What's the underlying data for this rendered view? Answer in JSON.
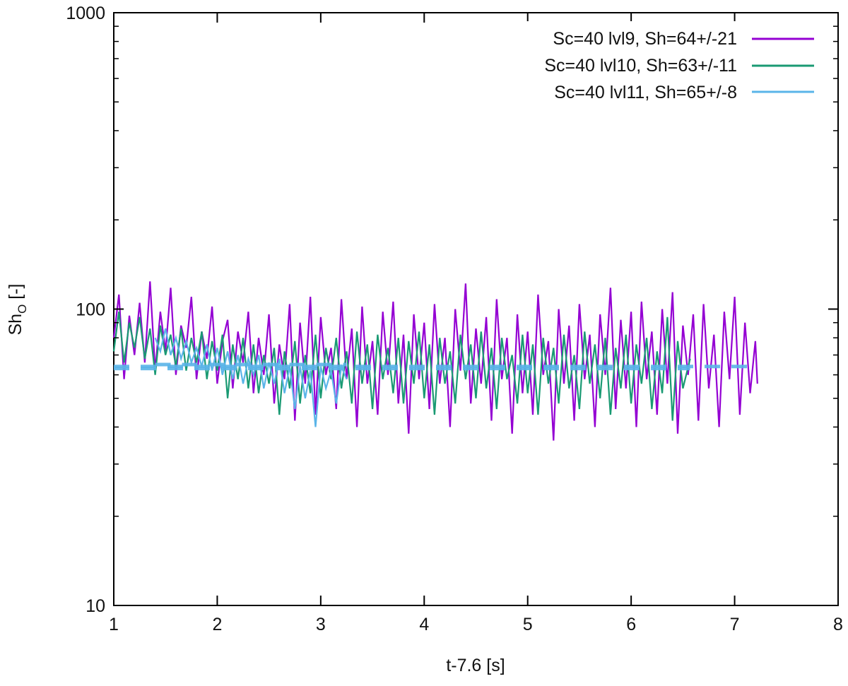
{
  "chart_data": {
    "type": "line",
    "title": "",
    "xlabel": "t-7.6 [s]",
    "ylabel_main": "Sh",
    "ylabel_sub": "O",
    "ylabel_suffix": " [-]",
    "xlim": [
      1,
      8
    ],
    "ylim": [
      10,
      1000
    ],
    "yscale": "log",
    "grid": false,
    "legend_position": "top-right",
    "x_ticks": [
      {
        "value": 1,
        "label": "1"
      },
      {
        "value": 2,
        "label": "2"
      },
      {
        "value": 3,
        "label": "3"
      },
      {
        "value": 4,
        "label": "4"
      },
      {
        "value": 5,
        "label": "5"
      },
      {
        "value": 6,
        "label": "6"
      },
      {
        "value": 7,
        "label": "7"
      },
      {
        "value": 8,
        "label": "8"
      }
    ],
    "y_ticks": [
      {
        "value": 10,
        "label": "10"
      },
      {
        "value": 100,
        "label": "100"
      },
      {
        "value": 1000,
        "label": "1000"
      }
    ],
    "series": [
      {
        "name": "Sc=40 lvl9, Sh=64+/-21",
        "color": "#9400d3",
        "mean": 64,
        "std": 21,
        "x_range": [
          1.0,
          7.22
        ],
        "points": [
          [
            1.0,
            80
          ],
          [
            1.05,
            112
          ],
          [
            1.1,
            58
          ],
          [
            1.15,
            95
          ],
          [
            1.2,
            70
          ],
          [
            1.25,
            105
          ],
          [
            1.3,
            66
          ],
          [
            1.35,
            124
          ],
          [
            1.4,
            62
          ],
          [
            1.45,
            98
          ],
          [
            1.5,
            72
          ],
          [
            1.55,
            118
          ],
          [
            1.6,
            60
          ],
          [
            1.65,
            88
          ],
          [
            1.7,
            74
          ],
          [
            1.75,
            110
          ],
          [
            1.8,
            58
          ],
          [
            1.85,
            84
          ],
          [
            1.9,
            68
          ],
          [
            1.95,
            102
          ],
          [
            2.0,
            56
          ],
          [
            2.05,
            78
          ],
          [
            2.1,
            92
          ],
          [
            2.15,
            54
          ],
          [
            2.2,
            84
          ],
          [
            2.25,
            66
          ],
          [
            2.3,
            98
          ],
          [
            2.35,
            52
          ],
          [
            2.4,
            80
          ],
          [
            2.45,
            60
          ],
          [
            2.5,
            96
          ],
          [
            2.55,
            48
          ],
          [
            2.6,
            76
          ],
          [
            2.65,
            58
          ],
          [
            2.7,
            104
          ],
          [
            2.75,
            42
          ],
          [
            2.8,
            90
          ],
          [
            2.85,
            56
          ],
          [
            2.9,
            110
          ],
          [
            2.95,
            44
          ],
          [
            3.0,
            94
          ],
          [
            3.05,
            60
          ],
          [
            3.1,
            74
          ],
          [
            3.15,
            46
          ],
          [
            3.2,
            108
          ],
          [
            3.25,
            58
          ],
          [
            3.3,
            86
          ],
          [
            3.35,
            40
          ],
          [
            3.4,
            102
          ],
          [
            3.45,
            56
          ],
          [
            3.5,
            78
          ],
          [
            3.55,
            44
          ],
          [
            3.6,
            98
          ],
          [
            3.65,
            60
          ],
          [
            3.7,
            106
          ],
          [
            3.75,
            48
          ],
          [
            3.8,
            82
          ],
          [
            3.85,
            38
          ],
          [
            3.9,
            96
          ],
          [
            3.95,
            58
          ],
          [
            4.0,
            90
          ],
          [
            4.05,
            46
          ],
          [
            4.1,
            104
          ],
          [
            4.15,
            56
          ],
          [
            4.2,
            80
          ],
          [
            4.25,
            40
          ],
          [
            4.3,
            100
          ],
          [
            4.35,
            62
          ],
          [
            4.4,
            122
          ],
          [
            4.45,
            48
          ],
          [
            4.5,
            86
          ],
          [
            4.55,
            56
          ],
          [
            4.6,
            94
          ],
          [
            4.65,
            42
          ],
          [
            4.7,
            108
          ],
          [
            4.75,
            58
          ],
          [
            4.8,
            80
          ],
          [
            4.85,
            38
          ],
          [
            4.9,
            96
          ],
          [
            4.95,
            52
          ],
          [
            5.0,
            84
          ],
          [
            5.05,
            44
          ],
          [
            5.1,
            112
          ],
          [
            5.15,
            60
          ],
          [
            5.2,
            78
          ],
          [
            5.25,
            36
          ],
          [
            5.3,
            100
          ],
          [
            5.35,
            56
          ],
          [
            5.4,
            88
          ],
          [
            5.45,
            42
          ],
          [
            5.5,
            104
          ],
          [
            5.55,
            58
          ],
          [
            5.6,
            82
          ],
          [
            5.65,
            40
          ],
          [
            5.7,
            96
          ],
          [
            5.75,
            60
          ],
          [
            5.8,
            118
          ],
          [
            5.85,
            46
          ],
          [
            5.9,
            92
          ],
          [
            5.95,
            54
          ],
          [
            6.0,
            98
          ],
          [
            6.05,
            40
          ],
          [
            6.1,
            106
          ],
          [
            6.15,
            58
          ],
          [
            6.2,
            84
          ],
          [
            6.25,
            44
          ],
          [
            6.3,
            100
          ],
          [
            6.35,
            56
          ],
          [
            6.4,
            114
          ],
          [
            6.45,
            38
          ],
          [
            6.5,
            88
          ],
          [
            6.55,
            60
          ],
          [
            6.6,
            96
          ],
          [
            6.65,
            42
          ],
          [
            6.7,
            104
          ],
          [
            6.75,
            54
          ],
          [
            6.8,
            82
          ],
          [
            6.85,
            40
          ],
          [
            6.9,
            98
          ],
          [
            6.95,
            58
          ],
          [
            7.0,
            110
          ],
          [
            7.05,
            44
          ],
          [
            7.1,
            90
          ],
          [
            7.15,
            52
          ],
          [
            7.2,
            78
          ],
          [
            7.22,
            56
          ]
        ]
      },
      {
        "name": "Sc=40 lvl10, Sh=63+/-11",
        "color": "#1a9a73",
        "mean": 63,
        "std": 11,
        "x_range": [
          1.0,
          6.57
        ],
        "points": [
          [
            1.0,
            72
          ],
          [
            1.05,
            98
          ],
          [
            1.1,
            66
          ],
          [
            1.15,
            90
          ],
          [
            1.2,
            74
          ],
          [
            1.25,
            94
          ],
          [
            1.3,
            68
          ],
          [
            1.35,
            86
          ],
          [
            1.4,
            60
          ],
          [
            1.45,
            88
          ],
          [
            1.5,
            70
          ],
          [
            1.55,
            82
          ],
          [
            1.6,
            64
          ],
          [
            1.65,
            86
          ],
          [
            1.7,
            62
          ],
          [
            1.75,
            80
          ],
          [
            1.8,
            66
          ],
          [
            1.85,
            84
          ],
          [
            1.9,
            58
          ],
          [
            1.95,
            78
          ],
          [
            2.0,
            62
          ],
          [
            2.05,
            82
          ],
          [
            2.1,
            50
          ],
          [
            2.15,
            76
          ],
          [
            2.2,
            58
          ],
          [
            2.25,
            80
          ],
          [
            2.3,
            54
          ],
          [
            2.35,
            76
          ],
          [
            2.4,
            52
          ],
          [
            2.45,
            70
          ],
          [
            2.5,
            56
          ],
          [
            2.55,
            74
          ],
          [
            2.6,
            44
          ],
          [
            2.65,
            72
          ],
          [
            2.7,
            54
          ],
          [
            2.75,
            78
          ],
          [
            2.8,
            48
          ],
          [
            2.85,
            70
          ],
          [
            2.9,
            52
          ],
          [
            2.95,
            82
          ],
          [
            3.0,
            50
          ],
          [
            3.05,
            74
          ],
          [
            3.1,
            58
          ],
          [
            3.15,
            80
          ],
          [
            3.2,
            54
          ],
          [
            3.25,
            72
          ],
          [
            3.3,
            48
          ],
          [
            3.35,
            84
          ],
          [
            3.4,
            56
          ],
          [
            3.45,
            76
          ],
          [
            3.5,
            46
          ],
          [
            3.55,
            82
          ],
          [
            3.6,
            58
          ],
          [
            3.65,
            74
          ],
          [
            3.7,
            52
          ],
          [
            3.75,
            80
          ],
          [
            3.8,
            48
          ],
          [
            3.85,
            78
          ],
          [
            3.9,
            56
          ],
          [
            3.95,
            84
          ],
          [
            4.0,
            50
          ],
          [
            4.05,
            76
          ],
          [
            4.1,
            44
          ],
          [
            4.15,
            80
          ],
          [
            4.2,
            56
          ],
          [
            4.25,
            72
          ],
          [
            4.3,
            48
          ],
          [
            4.35,
            82
          ],
          [
            4.4,
            58
          ],
          [
            4.45,
            76
          ],
          [
            4.5,
            50
          ],
          [
            4.55,
            84
          ],
          [
            4.6,
            54
          ],
          [
            4.65,
            74
          ],
          [
            4.7,
            46
          ],
          [
            4.75,
            80
          ],
          [
            4.8,
            58
          ],
          [
            4.85,
            70
          ],
          [
            4.9,
            48
          ],
          [
            4.95,
            82
          ],
          [
            5.0,
            52
          ],
          [
            5.05,
            76
          ],
          [
            5.1,
            44
          ],
          [
            5.15,
            80
          ],
          [
            5.2,
            56
          ],
          [
            5.25,
            74
          ],
          [
            5.3,
            48
          ],
          [
            5.35,
            82
          ],
          [
            5.4,
            54
          ],
          [
            5.45,
            70
          ],
          [
            5.5,
            46
          ],
          [
            5.55,
            84
          ],
          [
            5.6,
            56
          ],
          [
            5.65,
            76
          ],
          [
            5.7,
            50
          ],
          [
            5.75,
            80
          ],
          [
            5.8,
            44
          ],
          [
            5.85,
            74
          ],
          [
            5.9,
            54
          ],
          [
            5.95,
            82
          ],
          [
            6.0,
            48
          ],
          [
            6.05,
            76
          ],
          [
            6.1,
            56
          ],
          [
            6.15,
            80
          ],
          [
            6.2,
            46
          ],
          [
            6.25,
            72
          ],
          [
            6.3,
            52
          ],
          [
            6.35,
            94
          ],
          [
            6.4,
            42
          ],
          [
            6.45,
            78
          ],
          [
            6.5,
            54
          ],
          [
            6.57,
            68
          ]
        ]
      },
      {
        "name": "Sc=40 lvl11, Sh=65+/-8",
        "color": "#5ab4e8",
        "mean": 65,
        "std": 8,
        "x_range": [
          1.4,
          3.25
        ],
        "points": [
          [
            1.4,
            80
          ],
          [
            1.45,
            72
          ],
          [
            1.5,
            86
          ],
          [
            1.55,
            70
          ],
          [
            1.6,
            80
          ],
          [
            1.65,
            68
          ],
          [
            1.7,
            78
          ],
          [
            1.75,
            66
          ],
          [
            1.8,
            74
          ],
          [
            1.85,
            64
          ],
          [
            1.9,
            76
          ],
          [
            1.95,
            62
          ],
          [
            2.0,
            74
          ],
          [
            2.05,
            60
          ],
          [
            2.1,
            72
          ],
          [
            2.15,
            58
          ],
          [
            2.2,
            70
          ],
          [
            2.25,
            56
          ],
          [
            2.3,
            68
          ],
          [
            2.35,
            60
          ],
          [
            2.4,
            70
          ],
          [
            2.45,
            54
          ],
          [
            2.5,
            66
          ],
          [
            2.55,
            56
          ],
          [
            2.6,
            68
          ],
          [
            2.65,
            52
          ],
          [
            2.7,
            64
          ],
          [
            2.75,
            46
          ],
          [
            2.8,
            64
          ],
          [
            2.85,
            50
          ],
          [
            2.9,
            62
          ],
          [
            2.95,
            40
          ],
          [
            3.0,
            64
          ],
          [
            3.05,
            54
          ],
          [
            3.1,
            62
          ],
          [
            3.15,
            48
          ],
          [
            3.2,
            64
          ],
          [
            3.25,
            58
          ]
        ]
      }
    ]
  }
}
